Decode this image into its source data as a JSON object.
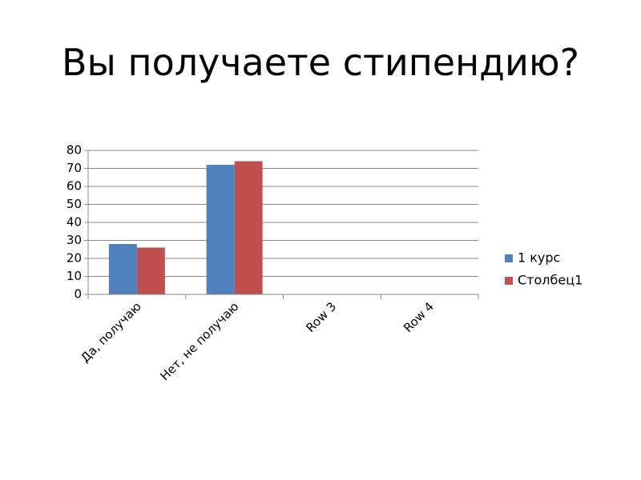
{
  "chart_data": {
    "type": "bar",
    "title": "Вы получаете стипендию?",
    "categories": [
      "Да, получаю",
      "Нет, не получаю",
      "Row 3",
      "Row 4"
    ],
    "series": [
      {
        "name": "1 курс",
        "color": "#4f81bd",
        "values": [
          28,
          72,
          null,
          null
        ]
      },
      {
        "name": "Столбец1",
        "color": "#c0504d",
        "values": [
          26,
          74,
          null,
          null
        ]
      }
    ],
    "ylim": [
      0,
      80
    ],
    "yticks": [
      0,
      10,
      20,
      30,
      40,
      50,
      60,
      70,
      80
    ],
    "grid": true,
    "legend": "right"
  }
}
